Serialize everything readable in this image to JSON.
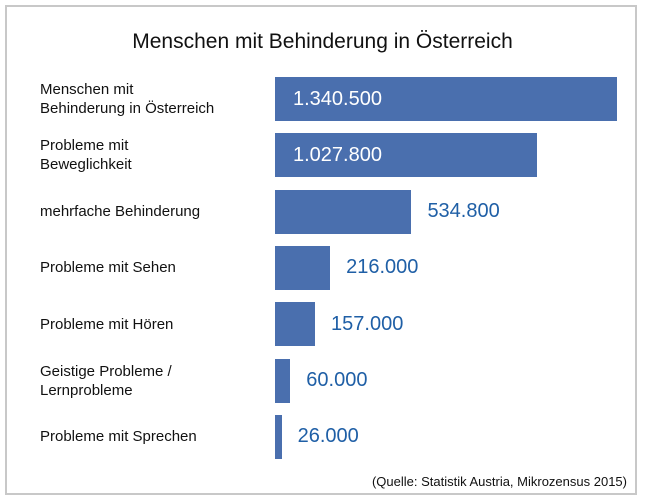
{
  "chart_data": {
    "type": "barh",
    "title": "Menschen mit Behinderung in Österreich",
    "categories": [
      "Menschen mit\nBehinderung in Österreich",
      "Probleme mit\nBeweglichkeit",
      "mehrfache Behinderung",
      "Probleme mit Sehen",
      "Probleme mit Hören",
      "Geistige Probleme /\nLernprobleme",
      "Probleme mit Sprechen"
    ],
    "values": [
      1340500,
      1027800,
      534800,
      216000,
      157000,
      60000,
      26000
    ],
    "value_labels": [
      "1.340.500",
      "1.027.800",
      "534.800",
      "216.000",
      "157.000",
      "60.000",
      "26.000"
    ],
    "color": "#4a6fae",
    "label_color": "#1f5fa6",
    "source": "(Quelle: Statistik Austria, Mikrozensus 2015)"
  }
}
